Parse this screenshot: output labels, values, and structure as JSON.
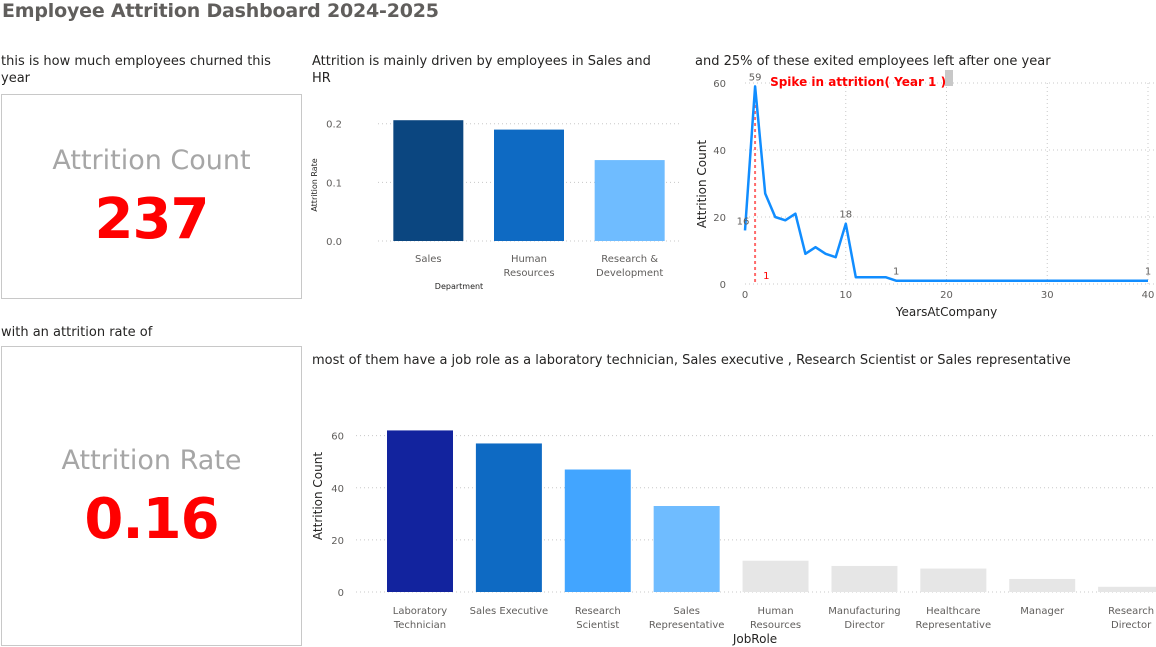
{
  "title": "Employee Attrition Dashboard 2024-2025",
  "cards": {
    "count": {
      "caption": "this is how much employees churned this year",
      "label": "Attrition Count",
      "value": "237"
    },
    "rate": {
      "caption": "with an attrition rate of",
      "label": "Attrition Rate",
      "value": "0.16"
    }
  },
  "dept_caption": "Attrition is mainly driven by employees in Sales and HR",
  "years_caption": "and 25% of these exited employees left after one year",
  "jobrole_caption": "most of them have a job role as a laboratory technician, Sales executive , Research Scientist or Sales representative",
  "colors": {
    "accent_red": "#ff0000",
    "line": "#118dff",
    "gray_bar": "#e6e6e6"
  },
  "chart_data": [
    {
      "type": "bar",
      "xlabel": "Department",
      "ylabel": "Attrition Rate",
      "ylim": [
        0,
        0.22
      ],
      "yticks": [
        "0.0",
        "0.1",
        "0.2"
      ],
      "categories": [
        [
          "Sales"
        ],
        [
          "Human",
          "Resources"
        ],
        [
          "Research &",
          "Development"
        ]
      ],
      "values": [
        0.206,
        0.19,
        0.138
      ],
      "colors": [
        "#0b4680",
        "#0e6ac3",
        "#6fbcff"
      ]
    },
    {
      "type": "line",
      "xlabel": "YearsAtCompany",
      "ylabel": "Attrition Count",
      "xlim": [
        0,
        40
      ],
      "ylim": [
        0,
        60
      ],
      "xticks": [
        0,
        10,
        20,
        30,
        40
      ],
      "yticks": [
        0,
        20,
        40,
        60
      ],
      "x": [
        0,
        1,
        2,
        3,
        4,
        5,
        6,
        7,
        8,
        9,
        10,
        11,
        12,
        13,
        14,
        15,
        40
      ],
      "y": [
        16,
        59,
        27,
        20,
        19,
        21,
        9,
        11,
        9,
        8,
        18,
        2,
        2,
        2,
        2,
        1,
        1
      ],
      "point_labels": [
        {
          "x": 0,
          "y": 16,
          "text": "16"
        },
        {
          "x": 1,
          "y": 59,
          "text": "59"
        },
        {
          "x": 10,
          "y": 18,
          "text": "18"
        },
        {
          "x": 15,
          "y": 1,
          "text": "1"
        },
        {
          "x": 40,
          "y": 1,
          "text": "1"
        }
      ],
      "annotation": {
        "text": "Spike in attrition( Year 1 )",
        "x": 1,
        "marker_label": "1"
      }
    },
    {
      "type": "bar",
      "xlabel": "JobRole",
      "ylabel": "Attrition Count",
      "ylim": [
        0,
        66
      ],
      "yticks": [
        0,
        20,
        40,
        60
      ],
      "categories": [
        [
          "Laboratory",
          "Technician"
        ],
        [
          "Sales Executive"
        ],
        [
          "Research",
          "Scientist"
        ],
        [
          "Sales",
          "Representative"
        ],
        [
          "Human",
          "Resources"
        ],
        [
          "Manufacturing",
          "Director"
        ],
        [
          "Healthcare",
          "Representative"
        ],
        [
          "Manager"
        ],
        [
          "Research",
          "Director"
        ]
      ],
      "values": [
        62,
        57,
        47,
        33,
        12,
        10,
        9,
        5,
        2
      ],
      "colors": [
        "#12239e",
        "#0e6ac3",
        "#42a5ff",
        "#6fbcff",
        "#e6e6e6",
        "#e6e6e6",
        "#e6e6e6",
        "#e6e6e6",
        "#e6e6e6"
      ]
    }
  ]
}
